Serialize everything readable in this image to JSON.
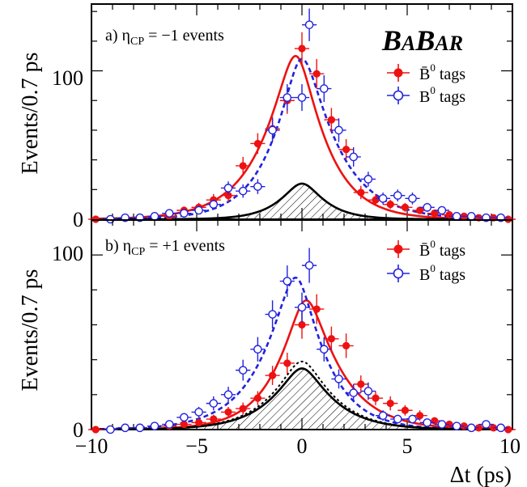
{
  "logo": "BaBar",
  "colors": {
    "bbar_tags": "#ee1111",
    "b0_tags": "#2222dd",
    "background": "#000000"
  },
  "chart_data": [
    {
      "type": "scatter",
      "title": "a) η_CP = −1 events",
      "title_parts": {
        "prefix": "a) η",
        "subscript": "CP",
        "suffix": " = −1 events"
      },
      "xlabel": "Δt (ps)",
      "ylabel": "Events/0.7 ps",
      "xlim": [
        -10,
        10
      ],
      "ylim": [
        0,
        145
      ],
      "x_ticks": [
        -10,
        -5,
        0,
        5,
        10
      ],
      "y_ticks": [
        0,
        100
      ],
      "legend": [
        {
          "label": "B̄⁰ tags",
          "base": "B̄",
          "sup": "0",
          "rest": " tags",
          "style": "filled-circle",
          "color": "#ee1111"
        },
        {
          "label": "B⁰ tags",
          "base": "B",
          "sup": "0",
          "rest": " tags",
          "style": "open-circle-cross",
          "color": "#2222dd"
        }
      ],
      "legend_position": "top-right",
      "series": [
        {
          "name": "B̄⁰ tags",
          "style": "filled-circle",
          "color": "#ee1111",
          "x": [
            -9.8,
            -9.1,
            -8.4,
            -7.7,
            -7.0,
            -6.3,
            -5.6,
            -4.9,
            -4.2,
            -3.5,
            -2.8,
            -2.1,
            -1.4,
            -0.7,
            0.0,
            0.7,
            1.4,
            2.1,
            2.8,
            3.5,
            4.2,
            4.9,
            5.6,
            6.3,
            7.0,
            7.7,
            8.4,
            9.1,
            9.8
          ],
          "y": [
            0,
            0,
            1,
            1,
            2,
            2,
            6,
            8,
            13,
            16,
            36,
            51,
            61,
            80,
            115,
            98,
            67,
            47,
            18,
            13,
            10,
            8,
            6,
            4,
            3,
            2,
            1,
            1,
            0
          ],
          "yerr": [
            1,
            1,
            1,
            1,
            1.5,
            1.5,
            2.5,
            3,
            4,
            4.5,
            6,
            7,
            8,
            9,
            11,
            10,
            8,
            7,
            4.5,
            4,
            3,
            3,
            2.5,
            2,
            1.5,
            1.5,
            1,
            1,
            1
          ]
        },
        {
          "name": "B⁰ tags",
          "style": "open-circle-cross",
          "color": "#2222dd",
          "x": [
            -9.1,
            -8.4,
            -7.7,
            -7.0,
            -6.3,
            -5.6,
            -4.9,
            -4.2,
            -3.5,
            -2.8,
            -2.1,
            -1.4,
            -0.7,
            0.0,
            0.35,
            1.05,
            1.75,
            2.45,
            3.15,
            3.85,
            4.55,
            5.25,
            5.95,
            6.65,
            7.35,
            8.05,
            8.75,
            9.45
          ],
          "y": [
            0,
            1,
            1,
            2,
            4,
            4,
            6,
            10,
            21,
            19,
            22,
            60,
            82,
            82,
            131,
            88,
            60,
            42,
            27,
            14,
            16,
            14,
            8,
            6,
            2,
            2,
            1,
            1
          ],
          "yerr": [
            1,
            1,
            1,
            1.5,
            2,
            2,
            2.5,
            3,
            4.5,
            4.5,
            5,
            8,
            9,
            9,
            11,
            9,
            8,
            6.5,
            5,
            4,
            4,
            4,
            3,
            2.5,
            1.5,
            1.5,
            1,
            1
          ]
        }
      ],
      "curves": [
        {
          "name": "B̄⁰ fit",
          "color": "#ee1111",
          "dash": "solid",
          "peak": 110,
          "center": -0.3,
          "tau_left": 1.55,
          "tau_right": 1.35,
          "smooth": 0.55
        },
        {
          "name": "B⁰ fit",
          "color": "#2222dd",
          "dash": "dashed",
          "peak": 108,
          "center": 0.0,
          "tau_left": 1.35,
          "tau_right": 1.6,
          "smooth": 0.55
        },
        {
          "name": "background",
          "color": "#000000",
          "dash": "solid",
          "hatched": true,
          "peak": 24,
          "center": 0.0,
          "tau_left": 1.0,
          "tau_right": 1.0,
          "smooth": 0.6
        }
      ]
    },
    {
      "type": "scatter",
      "title": "b) η_CP = +1 events",
      "title_parts": {
        "prefix": "b) η",
        "subscript": "CP",
        "suffix": " = +1 events"
      },
      "xlabel": "Δt (ps)",
      "ylabel": "Events/0.7 ps",
      "xlim": [
        -10,
        10
      ],
      "ylim": [
        0,
        120
      ],
      "x_ticks": [
        -10,
        -5,
        0,
        5,
        10
      ],
      "y_ticks": [
        0,
        100
      ],
      "legend": [
        {
          "label": "B̄⁰ tags",
          "base": "B̄",
          "sup": "0",
          "rest": " tags",
          "style": "filled-circle",
          "color": "#ee1111"
        },
        {
          "label": "B⁰ tags",
          "base": "B",
          "sup": "0",
          "rest": " tags",
          "style": "open-circle-cross",
          "color": "#2222dd"
        }
      ],
      "legend_position": "top-right",
      "series": [
        {
          "name": "B̄⁰ tags",
          "style": "filled-circle",
          "color": "#ee1111",
          "x": [
            -9.8,
            -9.1,
            -8.4,
            -7.7,
            -7.0,
            -6.3,
            -5.6,
            -4.9,
            -4.2,
            -3.5,
            -2.8,
            -2.1,
            -1.4,
            -0.7,
            0.0,
            0.7,
            1.4,
            2.1,
            2.8,
            3.5,
            4.2,
            4.9,
            5.6,
            6.3,
            7.0,
            7.7,
            8.4,
            9.1,
            9.8
          ],
          "y": [
            0,
            0,
            1,
            1,
            2,
            2,
            3,
            4,
            6,
            10,
            12,
            18,
            31,
            38,
            60,
            69,
            52,
            48,
            26,
            18,
            15,
            11,
            8,
            5,
            3,
            2,
            1,
            1,
            0
          ],
          "yerr": [
            1,
            1,
            1,
            1,
            1.5,
            1.5,
            1.5,
            2,
            2.5,
            3,
            3.5,
            4,
            5.5,
            6,
            8,
            8.5,
            7,
            7,
            5,
            4,
            4,
            3,
            3,
            2,
            1.5,
            1.5,
            1,
            1,
            1
          ]
        },
        {
          "name": "B⁰ tags",
          "style": "open-circle-cross",
          "color": "#2222dd",
          "x": [
            -9.1,
            -8.4,
            -7.7,
            -7.0,
            -6.3,
            -5.6,
            -4.9,
            -4.2,
            -3.5,
            -2.8,
            -2.1,
            -1.4,
            -0.7,
            0.0,
            0.35,
            1.05,
            1.75,
            2.45,
            3.15,
            3.85,
            4.55,
            5.25,
            5.95,
            6.65,
            7.35,
            8.05,
            8.75,
            9.45
          ],
          "y": [
            0,
            1,
            1,
            2,
            3,
            7,
            10,
            15,
            20,
            34,
            46,
            66,
            85,
            70,
            94,
            46,
            29,
            21,
            22,
            8,
            6,
            6,
            4,
            3,
            2,
            1,
            3,
            1
          ],
          "yerr": [
            1,
            1,
            1,
            1.5,
            2,
            2.5,
            3,
            4,
            4.5,
            6,
            7,
            8,
            9,
            8.5,
            10,
            7,
            5.5,
            5,
            5,
            3,
            2.5,
            2.5,
            2,
            2,
            1.5,
            1,
            2,
            1
          ]
        }
      ],
      "curves": [
        {
          "name": "B̄⁰ fit",
          "color": "#ee1111",
          "dash": "solid",
          "peak": 74,
          "center": 0.2,
          "tau_left": 1.35,
          "tau_right": 1.55,
          "smooth": 0.55
        },
        {
          "name": "B⁰ fit",
          "color": "#2222dd",
          "dash": "dashed",
          "peak": 87,
          "center": -0.3,
          "tau_left": 1.55,
          "tau_right": 1.35,
          "smooth": 0.55
        },
        {
          "name": "background",
          "color": "#000000",
          "dash": "solid",
          "hatched": true,
          "peak": 35,
          "center": 0.0,
          "tau_left": 1.45,
          "tau_right": 1.45,
          "smooth": 0.6
        },
        {
          "name": "background-dotted",
          "color": "#000000",
          "dash": "dotted",
          "peak": 39,
          "center": 0.0,
          "tau_left": 1.45,
          "tau_right": 1.45,
          "smooth": 0.6
        }
      ]
    }
  ]
}
